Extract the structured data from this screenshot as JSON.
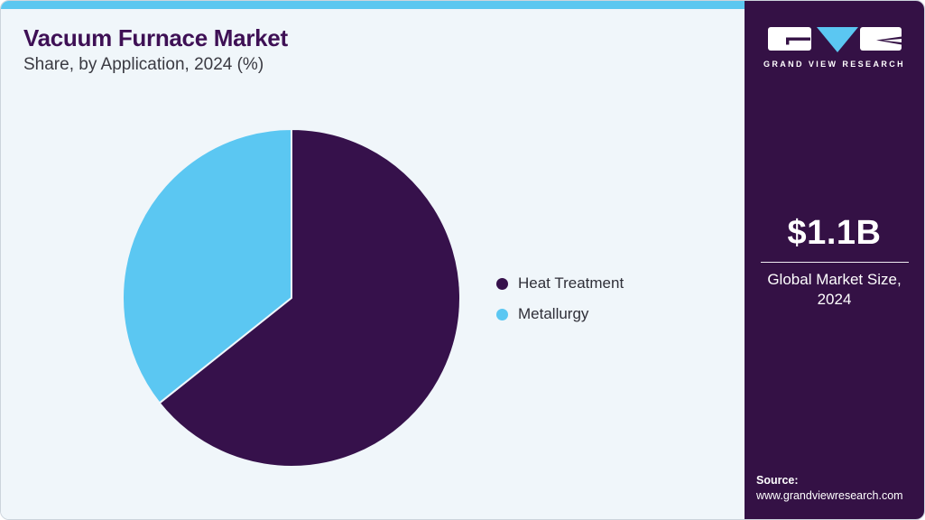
{
  "header": {
    "title": "Vacuum Furnace Market",
    "subtitle": "Share, by Application, 2024 (%)"
  },
  "chart_data": {
    "type": "pie",
    "title": "Vacuum Furnace Market Share, by Application, 2024 (%)",
    "categories": [
      "Heat Treatment",
      "Metallurgy"
    ],
    "values": [
      64.3,
      35.7
    ],
    "unit": "%",
    "colors": [
      "#36114B",
      "#5BC7F2"
    ],
    "start_angle_deg": 0,
    "direction": "clockwise",
    "legend_position": "right",
    "data_labels": false
  },
  "legend": {
    "items": [
      {
        "label": "Heat Treatment",
        "color": "#36114B"
      },
      {
        "label": "Metallurgy",
        "color": "#5BC7F2"
      }
    ]
  },
  "sidebar": {
    "logo": {
      "icon": "gvr-logo",
      "brand": "GRAND VIEW RESEARCH"
    },
    "market_size_value": "$1.1B",
    "market_size_label": "Global Market Size, 2024",
    "source_label": "Source:",
    "source_url": "www.grandviewresearch.com"
  },
  "colors": {
    "accent_blue": "#5BC7F0",
    "pie_purple": "#36114B",
    "pie_blue": "#5BC7F2",
    "sidebar_bg": "#341145",
    "main_bg": "#F0F6FA",
    "title_text": "#3E1055"
  }
}
